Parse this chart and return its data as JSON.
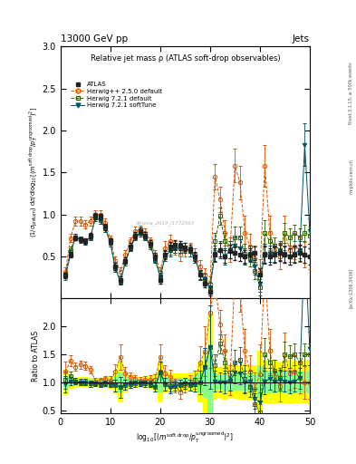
{
  "title_left": "13000 GeV pp",
  "title_right": "Jets",
  "plot_title": "Relative jet mass ρ (ATLAS soft-drop observables)",
  "ylabel_main": "(1/σ$_{preturn}$) dσ/d log$_{10}$[(m$^{soft drop}$/p$_T^{ungroomed}$)$^2$]",
  "ylabel_ratio": "Ratio to ATLAS",
  "xlabel": "log$_{10}$[(m$^{soft drop}$/p$_T^{ungroomed}$)$^2$]",
  "xlim": [
    0,
    50
  ],
  "ylim_main": [
    0,
    3.0
  ],
  "ylim_ratio": [
    0.45,
    2.5
  ],
  "yticks_main": [
    0.5,
    1.0,
    1.5,
    2.0,
    2.5,
    3.0
  ],
  "yticks_ratio": [
    0.5,
    1.0,
    1.5,
    2.0
  ],
  "xticks": [
    0,
    10,
    20,
    30,
    40,
    50
  ],
  "xticklabels": [
    "0",
    "10",
    "20",
    "30",
    "40",
    "50"
  ],
  "color_atlas": "#222222",
  "color_herwig_pp": "#d45500",
  "color_herwig721": "#336600",
  "color_herwig721_soft": "#005566",
  "band_yellow": "#ffff00",
  "band_green": "#88ff88",
  "watermark": "Athena_2019_I1772563",
  "right_text1": "Rivet 3.1.10; ≥ 500k events",
  "right_text2": "mcplots.cern.ch",
  "right_text3": "[arXiv:1306.3436]",
  "atlas_x": [
    1,
    2,
    3,
    4,
    5,
    6,
    7,
    8,
    9,
    10,
    11,
    12,
    13,
    14,
    15,
    16,
    17,
    18,
    19,
    20,
    21,
    22,
    23,
    24,
    25,
    26,
    27,
    28,
    29,
    30,
    31,
    32,
    33,
    34,
    35,
    36,
    37,
    38,
    39,
    40,
    41,
    42,
    43,
    44,
    45,
    46,
    47,
    48,
    49,
    50
  ],
  "atlas_y": [
    0.27,
    0.52,
    0.72,
    0.7,
    0.68,
    0.75,
    0.98,
    0.97,
    0.85,
    0.68,
    0.38,
    0.22,
    0.45,
    0.62,
    0.75,
    0.8,
    0.75,
    0.65,
    0.5,
    0.22,
    0.52,
    0.62,
    0.64,
    0.63,
    0.61,
    0.59,
    0.5,
    0.28,
    0.18,
    0.08,
    0.52,
    0.58,
    0.5,
    0.56,
    0.54,
    0.52,
    0.5,
    0.52,
    0.54,
    0.28,
    0.52,
    0.5,
    0.52,
    0.54,
    0.52,
    0.5,
    0.52,
    0.54,
    0.52,
    0.5
  ],
  "atlas_yerr": [
    0.03,
    0.03,
    0.03,
    0.03,
    0.03,
    0.03,
    0.04,
    0.04,
    0.04,
    0.04,
    0.04,
    0.04,
    0.04,
    0.04,
    0.04,
    0.04,
    0.04,
    0.04,
    0.04,
    0.04,
    0.05,
    0.05,
    0.05,
    0.05,
    0.05,
    0.05,
    0.05,
    0.05,
    0.05,
    0.05,
    0.08,
    0.08,
    0.08,
    0.08,
    0.08,
    0.08,
    0.08,
    0.08,
    0.08,
    0.08,
    0.1,
    0.1,
    0.1,
    0.1,
    0.1,
    0.1,
    0.1,
    0.1,
    0.1,
    0.1
  ],
  "hpp_y": [
    0.32,
    0.72,
    0.92,
    0.92,
    0.88,
    0.92,
    1.0,
    1.0,
    0.9,
    0.7,
    0.45,
    0.32,
    0.52,
    0.68,
    0.8,
    0.82,
    0.78,
    0.68,
    0.52,
    0.32,
    0.6,
    0.68,
    0.6,
    0.52,
    0.58,
    0.58,
    0.52,
    0.38,
    0.28,
    0.18,
    1.45,
    1.18,
    0.78,
    0.58,
    1.58,
    1.38,
    0.78,
    0.62,
    0.48,
    0.32,
    1.58,
    0.78,
    0.58,
    0.5,
    0.78,
    0.58,
    0.62,
    0.58,
    0.52,
    0.5
  ],
  "hpp_yerr": [
    0.05,
    0.05,
    0.05,
    0.05,
    0.05,
    0.05,
    0.05,
    0.05,
    0.05,
    0.05,
    0.05,
    0.05,
    0.05,
    0.05,
    0.05,
    0.05,
    0.05,
    0.05,
    0.05,
    0.05,
    0.08,
    0.08,
    0.08,
    0.08,
    0.08,
    0.08,
    0.08,
    0.08,
    0.08,
    0.08,
    0.15,
    0.15,
    0.15,
    0.15,
    0.2,
    0.2,
    0.2,
    0.15,
    0.15,
    0.15,
    0.25,
    0.2,
    0.15,
    0.15,
    0.2,
    0.15,
    0.15,
    0.15,
    0.15,
    0.15
  ],
  "h721_y": [
    0.28,
    0.58,
    0.73,
    0.7,
    0.68,
    0.73,
    0.96,
    0.93,
    0.83,
    0.66,
    0.36,
    0.2,
    0.43,
    0.6,
    0.73,
    0.78,
    0.73,
    0.63,
    0.46,
    0.26,
    0.5,
    0.58,
    0.6,
    0.6,
    0.6,
    0.56,
    0.48,
    0.28,
    0.23,
    0.13,
    0.68,
    0.98,
    0.68,
    0.58,
    0.73,
    0.73,
    0.53,
    0.48,
    0.33,
    0.13,
    0.78,
    0.68,
    0.63,
    0.58,
    0.78,
    0.73,
    0.78,
    0.73,
    0.78,
    0.75
  ],
  "h721_yerr": [
    0.04,
    0.04,
    0.04,
    0.04,
    0.04,
    0.04,
    0.04,
    0.04,
    0.04,
    0.04,
    0.04,
    0.04,
    0.04,
    0.04,
    0.04,
    0.04,
    0.04,
    0.04,
    0.04,
    0.04,
    0.06,
    0.06,
    0.06,
    0.06,
    0.06,
    0.06,
    0.06,
    0.06,
    0.06,
    0.06,
    0.1,
    0.1,
    0.1,
    0.1,
    0.12,
    0.12,
    0.12,
    0.1,
    0.1,
    0.1,
    0.15,
    0.12,
    0.1,
    0.1,
    0.12,
    0.1,
    0.1,
    0.1,
    0.1,
    0.1
  ],
  "h721s_y": [
    0.26,
    0.53,
    0.73,
    0.7,
    0.68,
    0.73,
    0.96,
    0.93,
    0.83,
    0.66,
    0.36,
    0.2,
    0.43,
    0.6,
    0.73,
    0.78,
    0.73,
    0.63,
    0.46,
    0.26,
    0.5,
    0.56,
    0.6,
    0.6,
    0.6,
    0.56,
    0.48,
    0.28,
    0.23,
    0.13,
    0.53,
    0.58,
    0.5,
    0.58,
    0.63,
    0.6,
    0.5,
    0.53,
    0.38,
    0.18,
    0.53,
    0.53,
    0.53,
    0.56,
    0.53,
    0.5,
    0.53,
    0.58,
    1.83,
    0.8
  ],
  "h721s_yerr": [
    0.04,
    0.04,
    0.04,
    0.04,
    0.04,
    0.04,
    0.04,
    0.04,
    0.04,
    0.04,
    0.04,
    0.04,
    0.04,
    0.04,
    0.04,
    0.04,
    0.04,
    0.04,
    0.04,
    0.04,
    0.06,
    0.06,
    0.06,
    0.06,
    0.06,
    0.06,
    0.06,
    0.06,
    0.06,
    0.06,
    0.1,
    0.1,
    0.1,
    0.1,
    0.1,
    0.1,
    0.1,
    0.1,
    0.1,
    0.1,
    0.12,
    0.1,
    0.1,
    0.1,
    0.1,
    0.1,
    0.1,
    0.1,
    0.25,
    0.15
  ]
}
